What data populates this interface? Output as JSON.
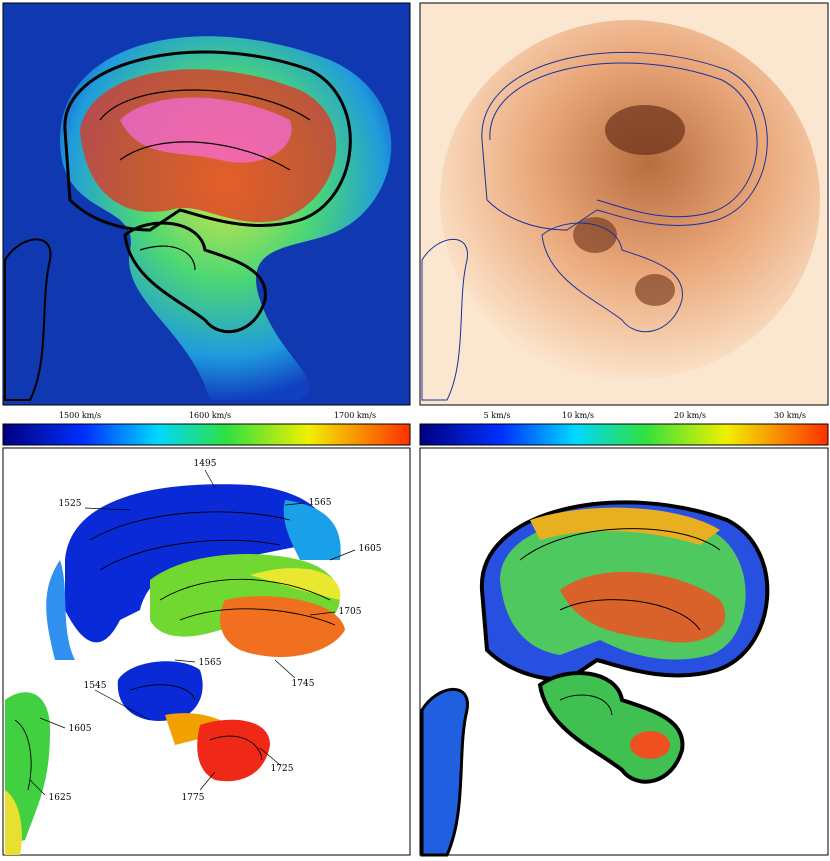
{
  "colorbars": {
    "velocity": {
      "labels": [
        "1500 km/s",
        "1600 km/s",
        "1700 km/s"
      ]
    },
    "dispersion": {
      "labels": [
        "5 km/s",
        "10 km/s",
        "20 km/s",
        "30 km/s"
      ]
    }
  },
  "velocity_map": {
    "contour_labels": [
      "1495",
      "1525",
      "1565",
      "1605",
      "1705",
      "1745",
      "1565",
      "1545",
      "1605",
      "1625",
      "1725",
      "1775"
    ]
  }
}
